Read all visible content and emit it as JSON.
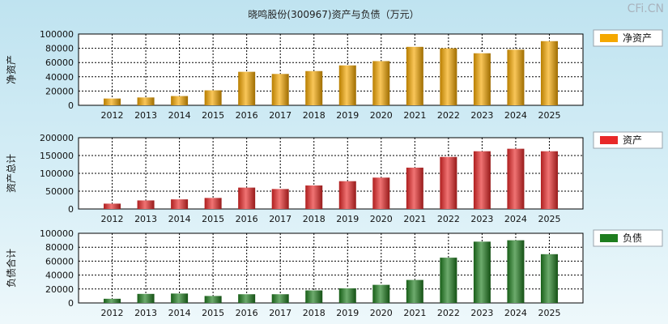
{
  "header": {
    "title": "晓鸣股份(300967)资产与负债（万元）",
    "watermark": "CFi.CN"
  },
  "chart_data": [
    {
      "type": "bar",
      "id": "net-assets",
      "ylabel": "净资产",
      "legend": "净资产",
      "legend_placement": "top-right",
      "color": "#f5a800",
      "grid": true,
      "ylim": [
        0,
        100000
      ],
      "yticks": [
        0,
        20000,
        40000,
        60000,
        80000,
        100000
      ],
      "categories": [
        "2012",
        "2013",
        "2014",
        "2015",
        "2016",
        "2017",
        "2018",
        "2019",
        "2020",
        "2021",
        "2022",
        "2023",
        "2024",
        "2025"
      ],
      "series": [
        {
          "name": "净资产",
          "values": [
            9500,
            11000,
            13000,
            21000,
            47000,
            44000,
            48000,
            56000,
            62000,
            82000,
            80000,
            73000,
            78000,
            90000
          ]
        }
      ]
    },
    {
      "type": "bar",
      "id": "total-assets",
      "ylabel": "资产总计",
      "legend": "资产",
      "legend_placement": "top-right",
      "color": "#e82828",
      "grid": true,
      "ylim": [
        0,
        200000
      ],
      "yticks": [
        0,
        50000,
        100000,
        150000,
        200000
      ],
      "categories": [
        "2012",
        "2013",
        "2014",
        "2015",
        "2016",
        "2017",
        "2018",
        "2019",
        "2020",
        "2021",
        "2022",
        "2023",
        "2024",
        "2025"
      ],
      "series": [
        {
          "name": "资产",
          "values": [
            15000,
            24000,
            27000,
            31000,
            60000,
            56000,
            66000,
            78000,
            88000,
            116000,
            146000,
            162000,
            169000,
            162000
          ]
        }
      ]
    },
    {
      "type": "bar",
      "id": "total-liabilities",
      "ylabel": "负债合计",
      "legend": "负债",
      "legend_placement": "top-right",
      "color": "#1f7d1f",
      "grid": true,
      "ylim": [
        0,
        100000
      ],
      "yticks": [
        0,
        20000,
        40000,
        60000,
        80000,
        100000
      ],
      "categories": [
        "2012",
        "2013",
        "2014",
        "2015",
        "2016",
        "2017",
        "2018",
        "2019",
        "2020",
        "2021",
        "2022",
        "2023",
        "2024",
        "2025"
      ],
      "series": [
        {
          "name": "负债",
          "values": [
            6000,
            13000,
            13500,
            10000,
            12500,
            12500,
            18000,
            21000,
            26000,
            33000,
            65000,
            88000,
            90000,
            70000
          ]
        }
      ]
    }
  ]
}
